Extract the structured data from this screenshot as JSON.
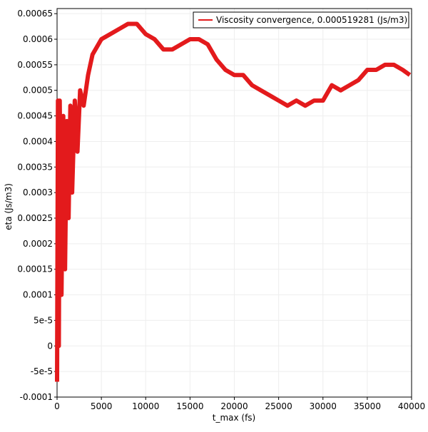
{
  "chart_data": {
    "type": "line",
    "xlabel": "t_max (fs)",
    "ylabel": "eta (Js/m3)",
    "x": [
      0,
      100,
      200,
      300,
      500,
      700,
      900,
      1100,
      1300,
      1500,
      1700,
      2000,
      2300,
      2600,
      3000,
      3500,
      4000,
      5000,
      6000,
      7000,
      8000,
      9000,
      10000,
      11000,
      12000,
      13000,
      14000,
      15000,
      16000,
      17000,
      18000,
      19000,
      20000,
      21000,
      22000,
      23000,
      24000,
      25000,
      26000,
      27000,
      28000,
      29000,
      30000,
      31000,
      32000,
      33000,
      34000,
      35000,
      36000,
      37000,
      38000,
      39000,
      39800
    ],
    "series": [
      {
        "name": "Viscosity convergence, 0.000519281 (Js/m3)",
        "color": "#e31a1c",
        "values": [
          -7e-05,
          0.00048,
          0.0,
          0.00048,
          0.0001,
          0.00045,
          0.00015,
          0.00044,
          0.00025,
          0.00047,
          0.0003,
          0.00048,
          0.00038,
          0.0005,
          0.00047,
          0.00053,
          0.00057,
          0.0006,
          0.00061,
          0.00062,
          0.00063,
          0.00063,
          0.00061,
          0.0006,
          0.00058,
          0.00058,
          0.00059,
          0.0006,
          0.0006,
          0.00059,
          0.00056,
          0.00054,
          0.00053,
          0.00053,
          0.00051,
          0.0005,
          0.00049,
          0.00048,
          0.00047,
          0.00048,
          0.00047,
          0.00048,
          0.00048,
          0.00051,
          0.0005,
          0.00051,
          0.00052,
          0.00054,
          0.00054,
          0.00055,
          0.00055,
          0.00054,
          0.00053
        ]
      }
    ],
    "xlim": [
      0,
      40000
    ],
    "ylim": [
      -0.0001,
      0.00066
    ],
    "xticks": [
      0,
      5000,
      10000,
      15000,
      20000,
      25000,
      30000,
      35000,
      40000
    ],
    "yticks": [
      -0.0001,
      {
        "value": -5e-05,
        "label": "-5e-5"
      },
      0,
      {
        "value": 5e-05,
        "label": "5e-5"
      },
      0.0001,
      0.00015,
      0.0002,
      0.00025,
      0.0003,
      0.00035,
      0.0004,
      0.00045,
      0.0005,
      0.00055,
      0.0006,
      0.00065
    ],
    "grid": true,
    "legend": "upper right"
  }
}
